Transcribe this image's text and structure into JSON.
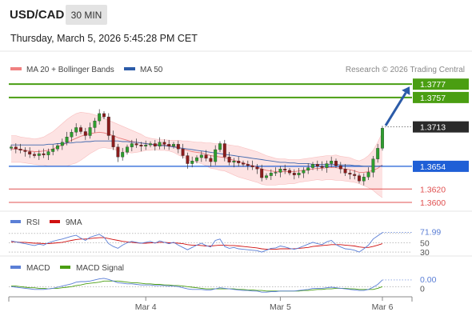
{
  "header": {
    "symbol": "USD/CAD",
    "timeframe": "30 MIN",
    "datetime": "Thursday, March 5, 2026 5:45:28 PM CET"
  },
  "copyright": "Research © 2026 Trading Central",
  "colors": {
    "green_level": "#4a9e12",
    "blue_level": "#1f5fd6",
    "red_level": "#e05050",
    "bollinger": "#f5a0a0",
    "ma20": "#e86a6a",
    "ma50": "#2b5ba8",
    "rsi": "#5b7fd6",
    "rsi_ma": "#d01010",
    "macd": "#5b7fd6",
    "macd_signal": "#4a9e12",
    "arrow": "#2b5ba8"
  },
  "chart_data": [
    {
      "type": "line",
      "panel": "price",
      "legend": [
        {
          "name": "MA 20 + Bollinger Bands",
          "color": "#f08080"
        },
        {
          "name": "MA 50",
          "color": "#2b5ba8"
        }
      ],
      "ylim": [
        1.3594,
        1.3788
      ],
      "levels": [
        {
          "value": 1.3777,
          "label": "1.3777",
          "style": "resistance"
        },
        {
          "value": 1.3757,
          "label": "1.3757",
          "style": "resistance"
        },
        {
          "value": 1.3713,
          "label": "1.3713",
          "style": "current"
        },
        {
          "value": 1.3654,
          "label": "1.3654",
          "style": "pivot"
        },
        {
          "value": 1.362,
          "label": "1.3620",
          "style": "support"
        },
        {
          "value": 1.36,
          "label": "1.3600",
          "style": "support"
        }
      ],
      "close": [
        1.3683,
        1.368,
        1.3678,
        1.3676,
        1.3672,
        1.367,
        1.3673,
        1.3671,
        1.3676,
        1.368,
        1.3685,
        1.369,
        1.3698,
        1.3705,
        1.3712,
        1.3706,
        1.37,
        1.3712,
        1.3722,
        1.3733,
        1.3728,
        1.37,
        1.3683,
        1.3668,
        1.3675,
        1.3683,
        1.3688,
        1.3686,
        1.3684,
        1.3686,
        1.3688,
        1.3684,
        1.369,
        1.3687,
        1.3684,
        1.3687,
        1.368,
        1.367,
        1.3658,
        1.3662,
        1.3667,
        1.3671,
        1.3666,
        1.3661,
        1.3679,
        1.3688,
        1.3668,
        1.366,
        1.3662,
        1.3659,
        1.3657,
        1.3655,
        1.3653,
        1.365,
        1.3637,
        1.364,
        1.3644,
        1.3645,
        1.365,
        1.3648,
        1.3644,
        1.3641,
        1.3644,
        1.3648,
        1.3652,
        1.3657,
        1.3654,
        1.3652,
        1.3658,
        1.3662,
        1.3655,
        1.365,
        1.3644,
        1.3642,
        1.364,
        1.3632,
        1.3638,
        1.3645,
        1.3665,
        1.3681,
        1.3711
      ],
      "ma20": [
        1.368,
        1.368,
        1.3679,
        1.3678,
        1.3677,
        1.3676,
        1.3676,
        1.3677,
        1.3678,
        1.368,
        1.3683,
        1.3686,
        1.3689,
        1.3693,
        1.3696,
        1.3699,
        1.3701,
        1.3703,
        1.3704,
        1.3705,
        1.3704,
        1.3702,
        1.37,
        1.3697,
        1.3695,
        1.3693,
        1.3691,
        1.369,
        1.3689,
        1.3688,
        1.3687,
        1.3687,
        1.3686,
        1.3686,
        1.3685,
        1.3684,
        1.3682,
        1.368,
        1.3678,
        1.3676,
        1.3675,
        1.3674,
        1.3672,
        1.367,
        1.3669,
        1.3668,
        1.3667,
        1.3665,
        1.3663,
        1.3661,
        1.3659,
        1.3657,
        1.3655,
        1.3653,
        1.365,
        1.3648,
        1.3647,
        1.3646,
        1.3646,
        1.3646,
        1.3646,
        1.3646,
        1.3647,
        1.3648,
        1.3649,
        1.365,
        1.3651,
        1.3651,
        1.3652,
        1.3652,
        1.3652,
        1.3651,
        1.365,
        1.3649,
        1.3647,
        1.3645,
        1.3645,
        1.3646,
        1.3648,
        1.3651,
        1.3656
      ],
      "bb_upper": [
        1.37,
        1.37,
        1.3698,
        1.3697,
        1.3696,
        1.3695,
        1.3696,
        1.3698,
        1.3702,
        1.3706,
        1.3712,
        1.3718,
        1.3724,
        1.3729,
        1.3733,
        1.3735,
        1.3734,
        1.3733,
        1.3731,
        1.3729,
        1.3726,
        1.3723,
        1.372,
        1.3717,
        1.3714,
        1.3711,
        1.3708,
        1.3705,
        1.3702,
        1.3698,
        1.3696,
        1.3695,
        1.3694,
        1.3694,
        1.3693,
        1.3693,
        1.3693,
        1.3692,
        1.3692,
        1.3691,
        1.369,
        1.369,
        1.3689,
        1.3689,
        1.3688,
        1.3688,
        1.3687,
        1.3686,
        1.3685,
        1.3684,
        1.3682,
        1.368,
        1.3678,
        1.3676,
        1.3673,
        1.367,
        1.3668,
        1.3666,
        1.3665,
        1.3665,
        1.3664,
        1.3664,
        1.3664,
        1.3665,
        1.3666,
        1.3667,
        1.3668,
        1.3669,
        1.367,
        1.367,
        1.3671,
        1.3669,
        1.3668,
        1.3667,
        1.3664,
        1.3662,
        1.3665,
        1.367,
        1.3678,
        1.369,
        1.3705
      ],
      "bb_lower": [
        1.366,
        1.366,
        1.366,
        1.3659,
        1.3658,
        1.3657,
        1.3656,
        1.3656,
        1.3654,
        1.3654,
        1.3654,
        1.3654,
        1.3654,
        1.3657,
        1.3659,
        1.3663,
        1.3668,
        1.3673,
        1.3677,
        1.3681,
        1.3682,
        1.3681,
        1.368,
        1.3677,
        1.3676,
        1.3675,
        1.3674,
        1.3675,
        1.3676,
        1.3678,
        1.3678,
        1.3679,
        1.3678,
        1.3678,
        1.3677,
        1.3675,
        1.3671,
        1.3668,
        1.3664,
        1.3661,
        1.366,
        1.3658,
        1.3655,
        1.3651,
        1.365,
        1.3648,
        1.3647,
        1.3644,
        1.3641,
        1.3638,
        1.3636,
        1.3634,
        1.3632,
        1.363,
        1.3627,
        1.3626,
        1.3626,
        1.3626,
        1.3627,
        1.3627,
        1.3628,
        1.3628,
        1.363,
        1.3631,
        1.3632,
        1.3633,
        1.3634,
        1.3633,
        1.3634,
        1.3634,
        1.3633,
        1.3633,
        1.3632,
        1.3631,
        1.363,
        1.3628,
        1.3625,
        1.3622,
        1.3618,
        1.3612,
        1.3607
      ],
      "ma50": [
        1.3686,
        1.3686,
        1.3686,
        1.3686,
        1.3686,
        1.3686,
        1.3686,
        1.3686,
        1.3687,
        1.3687,
        1.3688,
        1.3688,
        1.3689,
        1.3689,
        1.369,
        1.369,
        1.3691,
        1.3691,
        1.3692,
        1.3692,
        1.3692,
        1.3692,
        1.3692,
        1.3692,
        1.3691,
        1.3691,
        1.369,
        1.369,
        1.3689,
        1.3688,
        1.3687,
        1.3686,
        1.3685,
        1.3685,
        1.3684,
        1.3683,
        1.3682,
        1.3681,
        1.368,
        1.3679,
        1.3678,
        1.3677,
        1.3676,
        1.3675,
        1.3674,
        1.3673,
        1.3672,
        1.3671,
        1.367,
        1.3669,
        1.3668,
        1.3667,
        1.3666,
        1.3665,
        1.3664,
        1.3663,
        1.3662,
        1.3661,
        1.366,
        1.366,
        1.3659,
        1.3659,
        1.3658,
        1.3658,
        1.3658,
        1.3657,
        1.3657,
        1.3657,
        1.3657,
        1.3657,
        1.3657,
        1.3656,
        1.3656,
        1.3656,
        1.3655,
        1.3655,
        1.3654,
        1.3654,
        1.3654,
        1.3654,
        1.3655
      ],
      "projection": {
        "from_value": 1.3715,
        "to_value": 1.3777
      }
    },
    {
      "type": "line",
      "panel": "rsi",
      "legend": [
        {
          "name": "RSI",
          "color": "#5b7fd6"
        },
        {
          "name": "9MA",
          "color": "#d01010"
        }
      ],
      "ylim": [
        25,
        80
      ],
      "reference_levels": [
        {
          "value": 70,
          "label": ""
        },
        {
          "value": 50,
          "label": "50"
        },
        {
          "value": 30,
          "label": "30"
        }
      ],
      "current_label": "71.99",
      "rsi": [
        54,
        52,
        50,
        48,
        46,
        44,
        47,
        45,
        50,
        53,
        56,
        58,
        61,
        64,
        66,
        60,
        55,
        62,
        65,
        68,
        62,
        48,
        42,
        38,
        45,
        50,
        53,
        51,
        49,
        51,
        53,
        49,
        54,
        51,
        48,
        51,
        45,
        40,
        35,
        40,
        45,
        49,
        44,
        41,
        55,
        58,
        42,
        38,
        40,
        37,
        36,
        35,
        34,
        33,
        30,
        34,
        38,
        39,
        43,
        41,
        38,
        36,
        39,
        43,
        47,
        51,
        48,
        46,
        52,
        55,
        46,
        41,
        37,
        36,
        34,
        30,
        37,
        45,
        58,
        65,
        72
      ],
      "rsi_ma": [
        52,
        52,
        51,
        51,
        50,
        49,
        49,
        48,
        48,
        49,
        50,
        51,
        53,
        55,
        57,
        58,
        58,
        59,
        60,
        61,
        61,
        59,
        57,
        55,
        53,
        52,
        51,
        50,
        49,
        49,
        50,
        50,
        51,
        51,
        50,
        50,
        49,
        48,
        46,
        45,
        45,
        44,
        43,
        43,
        44,
        45,
        45,
        44,
        44,
        43,
        42,
        41,
        40,
        39,
        37,
        36,
        36,
        36,
        37,
        37,
        37,
        37,
        38,
        39,
        40,
        42,
        43,
        44,
        45,
        46,
        46,
        46,
        45,
        44,
        43,
        41,
        40,
        40,
        42,
        45,
        48
      ]
    },
    {
      "type": "line",
      "panel": "macd",
      "legend": [
        {
          "name": "MACD",
          "color": "#5b7fd6"
        },
        {
          "name": "MACD Signal",
          "color": "#4a9e12"
        }
      ],
      "ylim": [
        -0.0014,
        0.0022
      ],
      "reference_levels": [
        {
          "value": 0,
          "label": "0"
        }
      ],
      "current_label": "0.00",
      "macd": [
        0.0,
        -0.0001,
        -0.0002,
        -0.0003,
        -0.0004,
        -0.0005,
        -0.0005,
        -0.0005,
        -0.0004,
        -0.0003,
        -0.0001,
        0.0001,
        0.0003,
        0.0005,
        0.0008,
        0.0009,
        0.0009,
        0.001,
        0.0012,
        0.0014,
        0.0015,
        0.0013,
        0.001,
        0.0007,
        0.0006,
        0.0005,
        0.0005,
        0.0004,
        0.0003,
        0.0003,
        0.0003,
        0.0002,
        0.0002,
        0.0002,
        0.0001,
        0.0001,
        0.0,
        -0.0002,
        -0.0004,
        -0.0005,
        -0.0005,
        -0.0005,
        -0.0006,
        -0.0006,
        -0.0004,
        -0.0002,
        -0.0003,
        -0.0004,
        -0.0005,
        -0.0006,
        -0.0007,
        -0.0007,
        -0.0008,
        -0.0008,
        -0.001,
        -0.001,
        -0.0009,
        -0.0009,
        -0.0008,
        -0.0008,
        -0.0008,
        -0.0008,
        -0.0007,
        -0.0006,
        -0.0005,
        -0.0003,
        -0.0003,
        -0.0003,
        -0.0002,
        -0.0001,
        -0.0002,
        -0.0003,
        -0.0004,
        -0.0005,
        -0.0006,
        -0.0007,
        -0.0007,
        -0.0005,
        -0.0001,
        0.0004,
        0.0012
      ],
      "macd_signal": [
        0.0001,
        0.0001,
        0.0,
        -0.0001,
        -0.0002,
        -0.0002,
        -0.0003,
        -0.0003,
        -0.0004,
        -0.0003,
        -0.0003,
        -0.0002,
        -0.0001,
        0.0,
        0.0002,
        0.0003,
        0.0005,
        0.0006,
        0.0007,
        0.0008,
        0.001,
        0.001,
        0.001,
        0.001,
        0.0009,
        0.0008,
        0.0007,
        0.0007,
        0.0006,
        0.0005,
        0.0005,
        0.0004,
        0.0004,
        0.0003,
        0.0003,
        0.0002,
        0.0002,
        0.0001,
        0.0,
        -0.0001,
        -0.0002,
        -0.0003,
        -0.0004,
        -0.0004,
        -0.0004,
        -0.0004,
        -0.0004,
        -0.0004,
        -0.0004,
        -0.0005,
        -0.0005,
        -0.0006,
        -0.0006,
        -0.0007,
        -0.0007,
        -0.0008,
        -0.0008,
        -0.0008,
        -0.0008,
        -0.0008,
        -0.0008,
        -0.0008,
        -0.0008,
        -0.0007,
        -0.0007,
        -0.0006,
        -0.0005,
        -0.0005,
        -0.0004,
        -0.0004,
        -0.0003,
        -0.0003,
        -0.0003,
        -0.0004,
        -0.0004,
        -0.0005,
        -0.0005,
        -0.0005,
        -0.0005,
        -0.0003,
        0.0
      ]
    }
  ],
  "x_axis": {
    "ticks": [
      {
        "label": "Mar 4",
        "bar_index": 29
      },
      {
        "label": "Mar 5",
        "bar_index": 58
      },
      {
        "label": "Mar 6",
        "bar_index": 80
      }
    ]
  }
}
